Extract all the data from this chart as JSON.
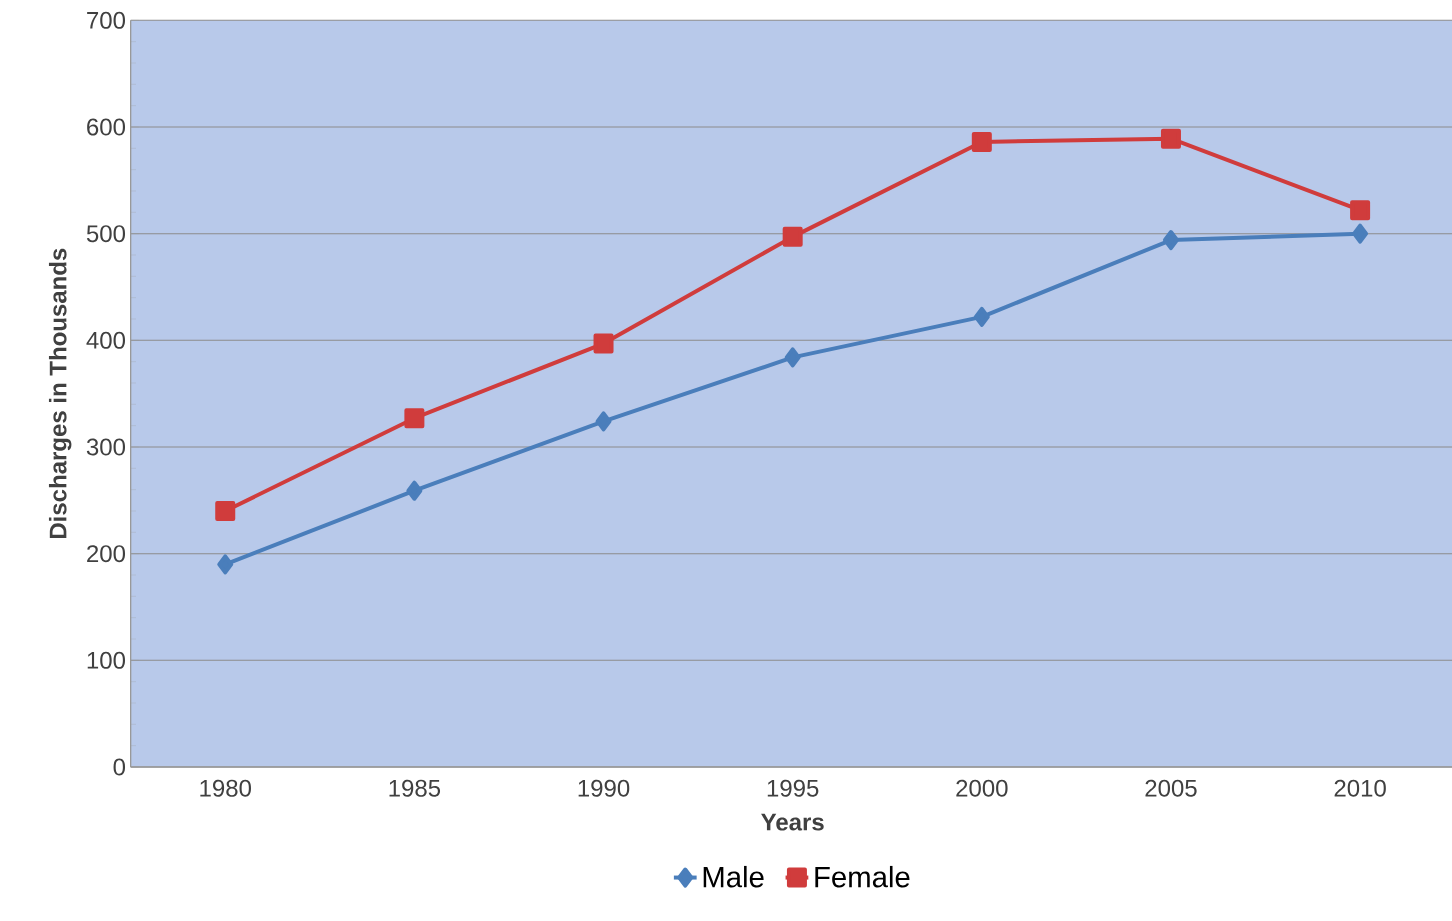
{
  "chart_data": {
    "type": "line",
    "xlabel": "Years",
    "ylabel": "Discharges in Thousands",
    "categories": [
      "1980",
      "1985",
      "1990",
      "1995",
      "2000",
      "2005",
      "2010"
    ],
    "series": [
      {
        "name": "Male",
        "color": "#4a7ebb",
        "marker": "diamond",
        "values": [
          190,
          259,
          324,
          384,
          422,
          494,
          500
        ]
      },
      {
        "name": "Female",
        "color": "#d03c3c",
        "marker": "square",
        "values": [
          240,
          327,
          397,
          497,
          586,
          589,
          522
        ]
      }
    ],
    "ylim": [
      0,
      700
    ],
    "yticks": [
      0,
      100,
      200,
      300,
      400,
      500,
      600,
      700
    ],
    "grid": "y",
    "legend": "bottom"
  }
}
